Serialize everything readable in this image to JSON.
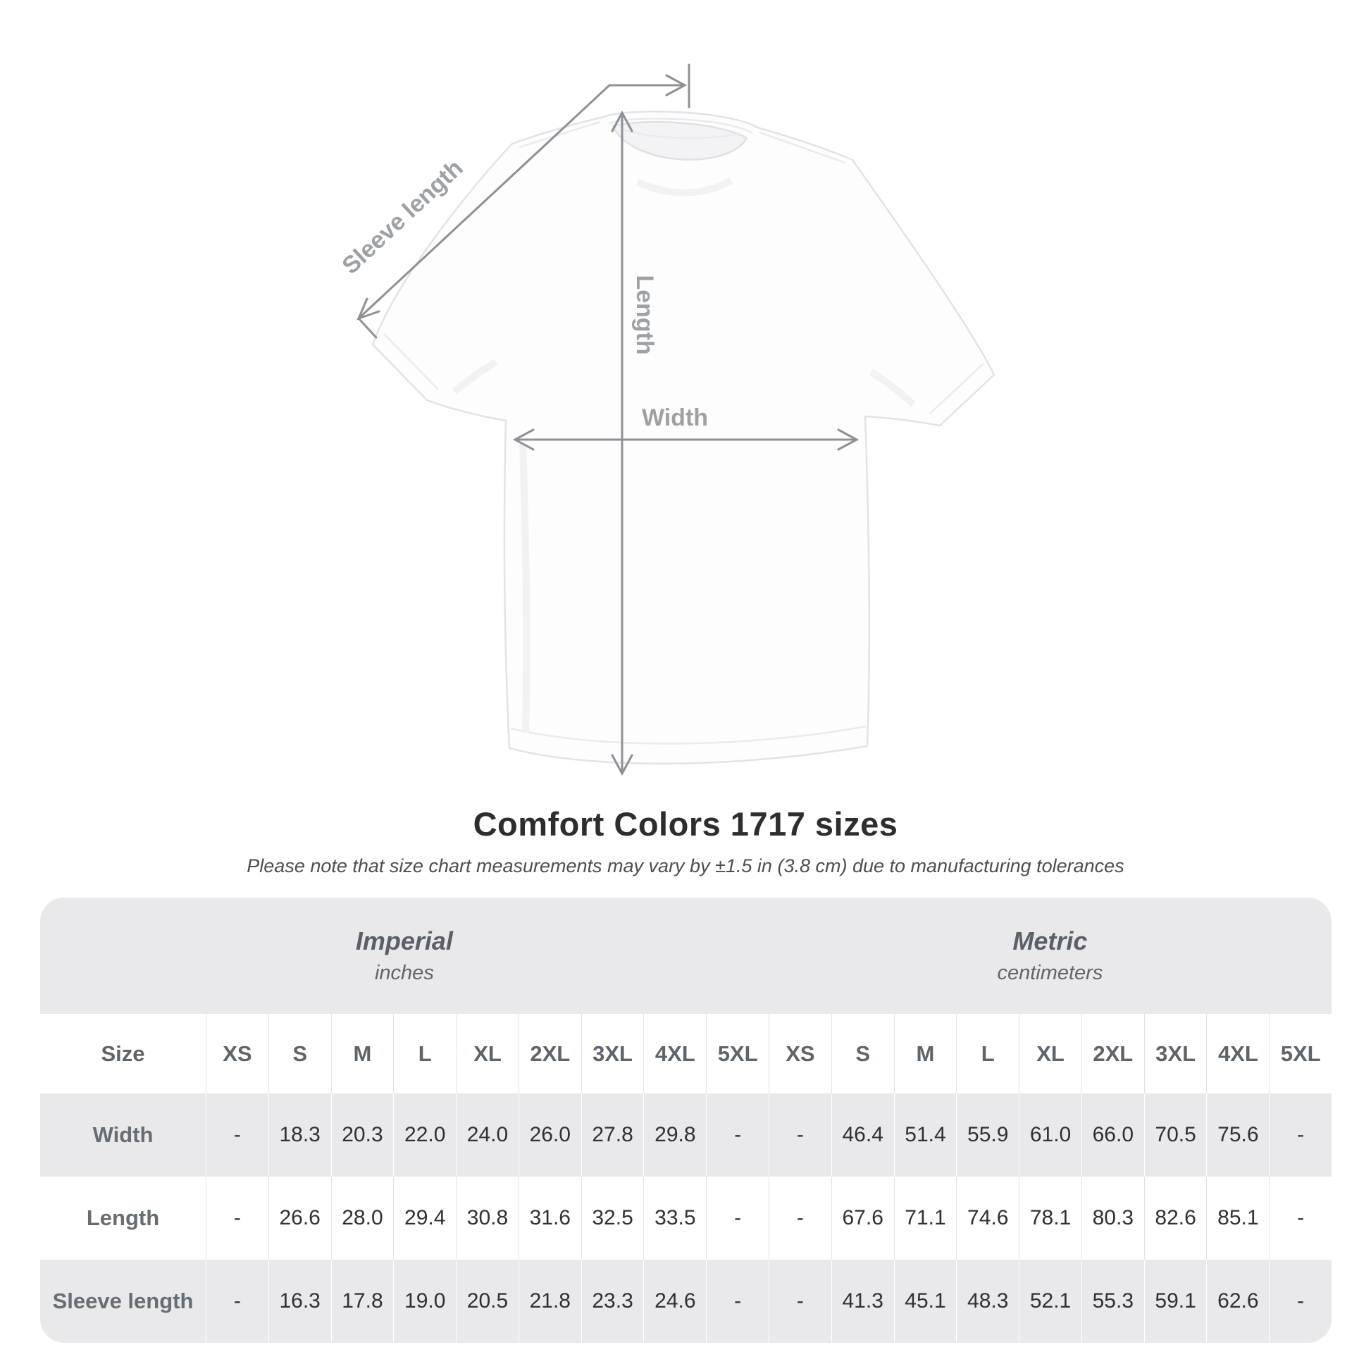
{
  "page": {
    "title": "Comfort Colors 1717 sizes",
    "subtitle": "Please note that size chart measurements may vary by ±1.5 in (3.8 cm) due to manufacturing tolerances"
  },
  "diagram": {
    "labels": {
      "sleeve_length": "Sleeve length",
      "length": "Length",
      "width": "Width"
    },
    "line_color": "#8d9195",
    "label_color": "#9ca1a6"
  },
  "table": {
    "container_bg": "#e9e9eb",
    "size_header": "Size",
    "groups": [
      {
        "label": "Imperial",
        "unit": "inches"
      },
      {
        "label": "Metric",
        "unit": "centimeters"
      }
    ],
    "sizes": [
      "XS",
      "S",
      "M",
      "L",
      "XL",
      "2XL",
      "3XL",
      "4XL",
      "5XL"
    ]
  },
  "chart_data": {
    "type": "table",
    "title": "Comfort Colors 1717 sizes",
    "note": "Please note that size chart measurements may vary by ±1.5 in (3.8 cm) due to manufacturing tolerances",
    "column_groups": [
      {
        "label": "Imperial",
        "unit": "inches",
        "sizes": [
          "XS",
          "S",
          "M",
          "L",
          "XL",
          "2XL",
          "3XL",
          "4XL",
          "5XL"
        ]
      },
      {
        "label": "Metric",
        "unit": "centimeters",
        "sizes": [
          "XS",
          "S",
          "M",
          "L",
          "XL",
          "2XL",
          "3XL",
          "4XL",
          "5XL"
        ]
      }
    ],
    "rows": [
      {
        "label": "Width",
        "imperial": [
          "-",
          "18.3",
          "20.3",
          "22.0",
          "24.0",
          "26.0",
          "27.8",
          "29.8",
          "-"
        ],
        "metric": [
          "-",
          "46.4",
          "51.4",
          "55.9",
          "61.0",
          "66.0",
          "70.5",
          "75.6",
          "-"
        ]
      },
      {
        "label": "Length",
        "imperial": [
          "-",
          "26.6",
          "28.0",
          "29.4",
          "30.8",
          "31.6",
          "32.5",
          "33.5",
          "-"
        ],
        "metric": [
          "-",
          "67.6",
          "71.1",
          "74.6",
          "78.1",
          "80.3",
          "82.6",
          "85.1",
          "-"
        ]
      },
      {
        "label": "Sleeve length",
        "imperial": [
          "-",
          "16.3",
          "17.8",
          "19.0",
          "20.5",
          "21.8",
          "23.3",
          "24.6",
          "-"
        ],
        "metric": [
          "-",
          "41.3",
          "45.1",
          "48.3",
          "52.1",
          "55.3",
          "59.1",
          "62.6",
          "-"
        ]
      }
    ]
  }
}
